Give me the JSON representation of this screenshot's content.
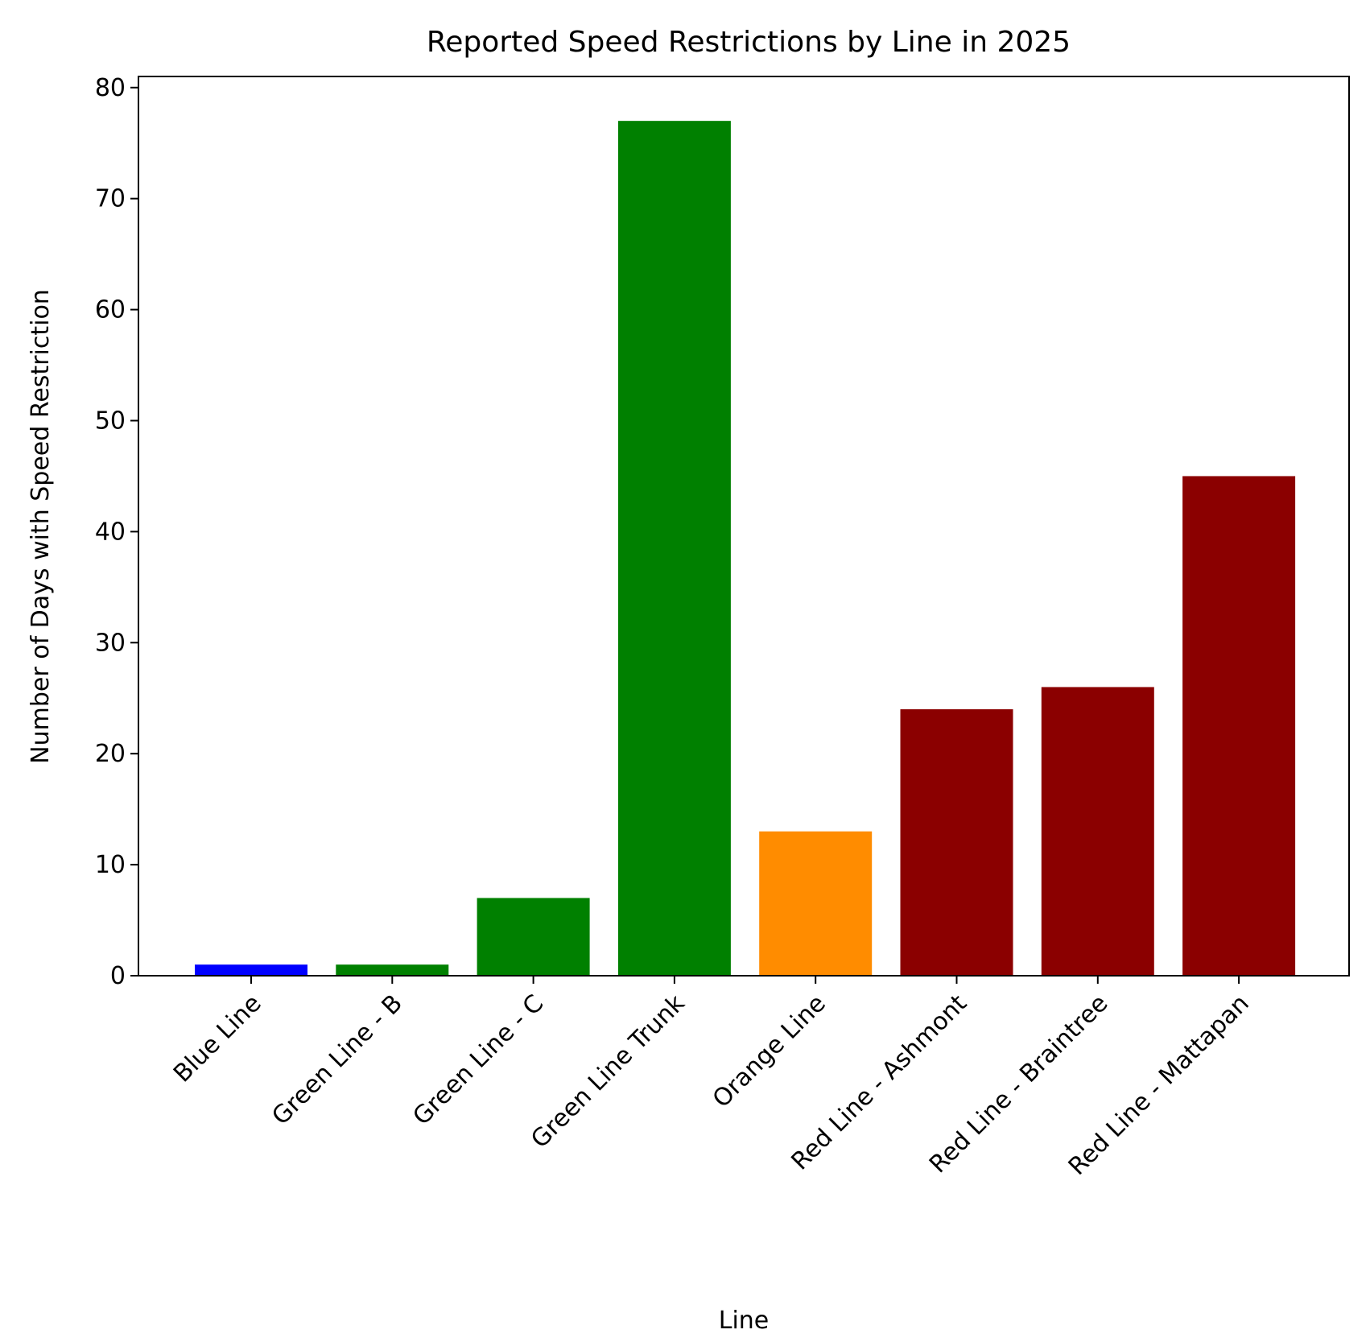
{
  "chart_data": {
    "type": "bar",
    "title": "Reported Speed Restrictions by Line in 2025",
    "xlabel": "Line",
    "ylabel": "Number of Days with Speed Restriction",
    "categories": [
      "Blue Line",
      "Green Line - B",
      "Green Line - C",
      "Green Line Trunk",
      "Orange Line",
      "Red Line - Ashmont",
      "Red Line - Braintree",
      "Red Line - Mattapan"
    ],
    "values": [
      1,
      1,
      7,
      77,
      13,
      24,
      26,
      45
    ],
    "colors": [
      "#0000ff",
      "#008000",
      "#008000",
      "#008000",
      "#ff8c00",
      "#8b0000",
      "#8b0000",
      "#8b0000"
    ],
    "ylim": [
      0,
      81
    ],
    "yticks": [
      0,
      10,
      20,
      30,
      40,
      50,
      60,
      70,
      80
    ],
    "grid": false,
    "legend": null
  }
}
